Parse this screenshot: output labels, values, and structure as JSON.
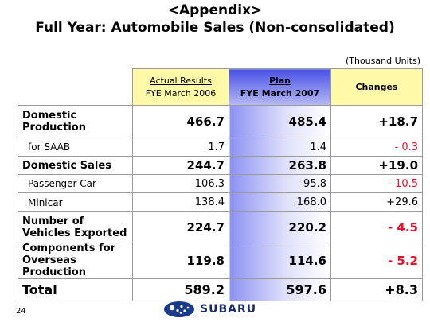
{
  "header": {
    "appendix": "<Appendix>",
    "title": "Full Year: Automobile Sales (Non-consolidated)",
    "units": "(Thousand Units)"
  },
  "columns": {
    "actual_line1": "Actual Results",
    "actual_line2": "FYE March 2006",
    "plan_line1": "Plan",
    "plan_line2": "FYE March 2007",
    "changes": "Changes"
  },
  "rows": [
    {
      "label": "Domestic Production",
      "actual": "466.7",
      "plan": "485.4",
      "change": "+18.7"
    },
    {
      "label": "for SAAB",
      "actual": "1.7",
      "plan": "1.4",
      "change": "- 0.3"
    },
    {
      "label": "Domestic Sales",
      "actual": "244.7",
      "plan": "263.8",
      "change": "+19.0"
    },
    {
      "label": "Passenger Car",
      "actual": "106.3",
      "plan": "95.8",
      "change": "- 10.5"
    },
    {
      "label": "Minicar",
      "actual": "138.4",
      "plan": "168.0",
      "change": "+29.6"
    },
    {
      "label": "Number of Vehicles Exported",
      "actual": "224.7",
      "plan": "220.2",
      "change": "- 4.5"
    },
    {
      "label": "Components for Overseas Production",
      "actual": "119.8",
      "plan": "114.6",
      "change": "- 5.2"
    },
    {
      "label": "Total",
      "actual": "589.2",
      "plan": "597.6",
      "change": "+8.3"
    }
  ],
  "footer": {
    "page_number": "24",
    "logo_text": "SUBARU",
    "logo_icon": "subaru-pleiades-icon"
  },
  "colors": {
    "header_yellow": "#fff9a8",
    "plan_blue": "#4a52e6",
    "negative_red": "#e8112d"
  }
}
